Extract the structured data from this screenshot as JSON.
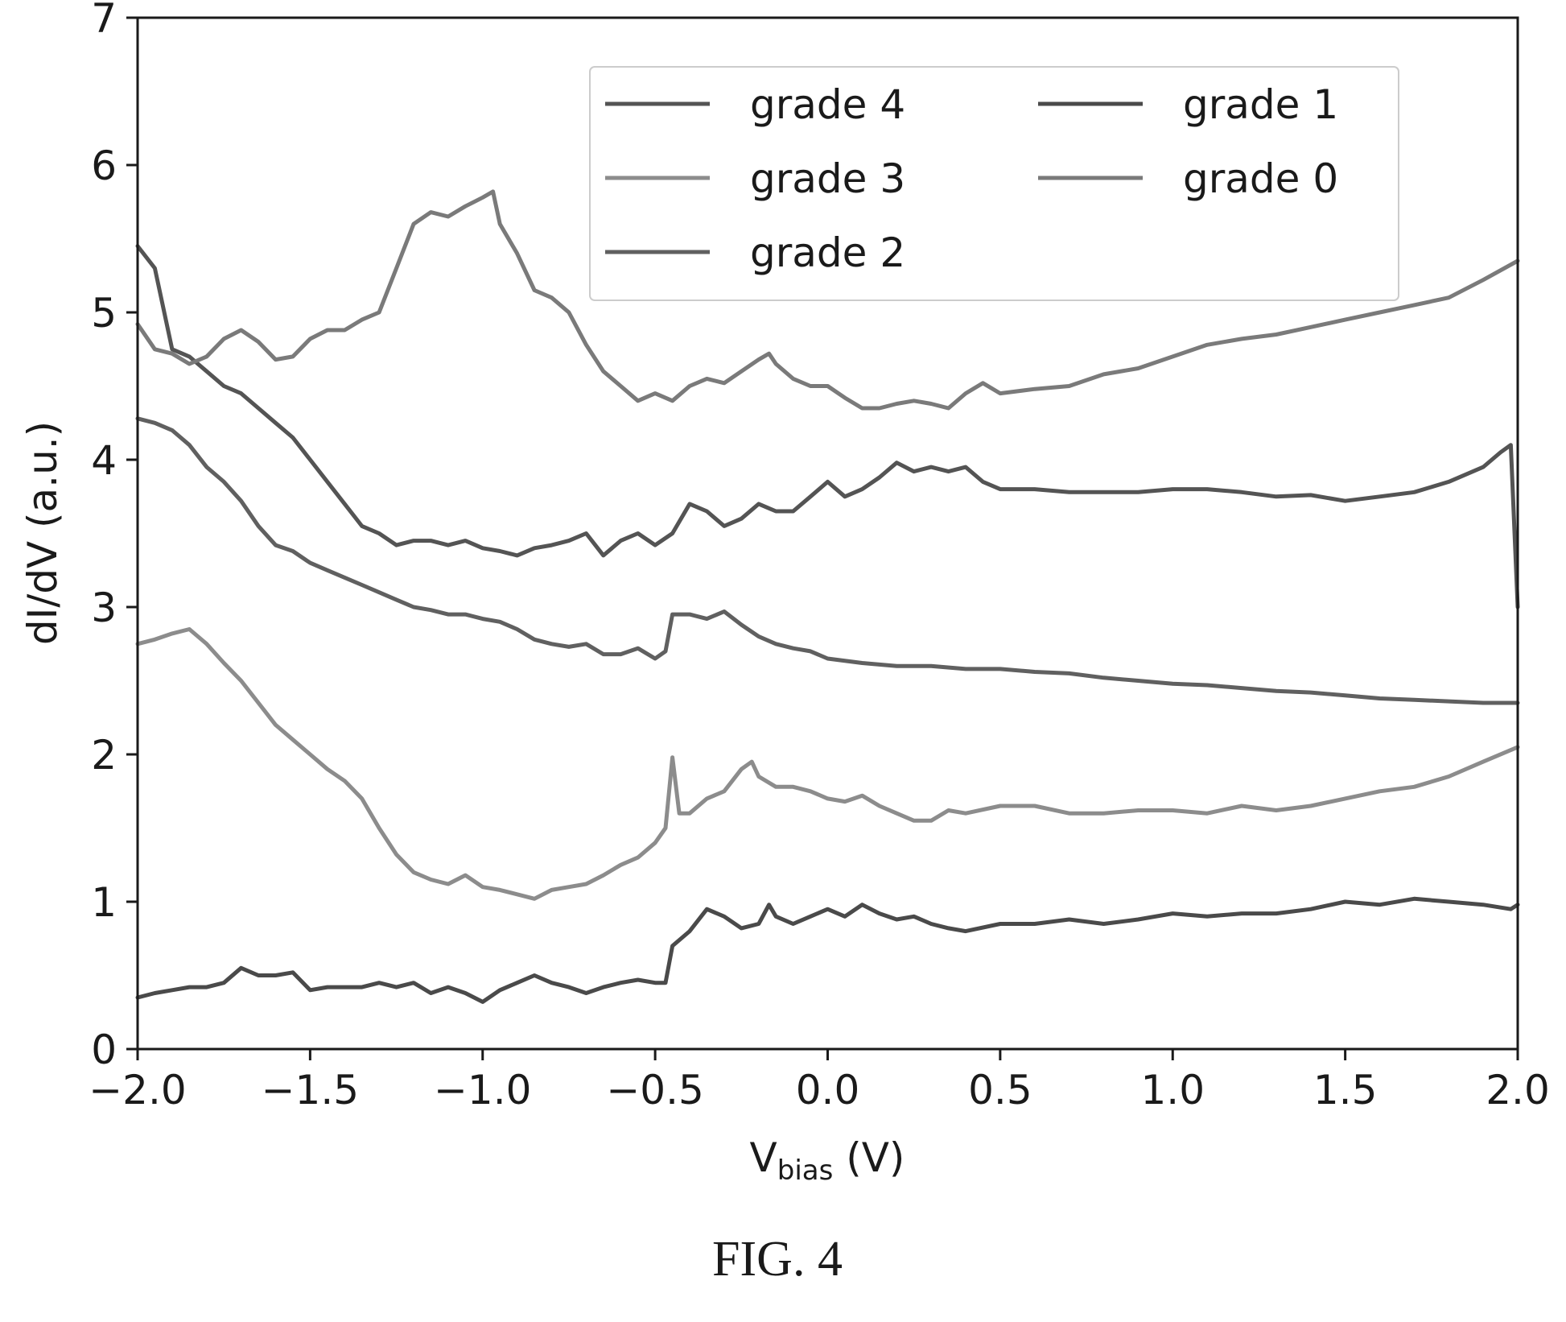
{
  "figure": {
    "caption": "FIG. 4"
  },
  "chart_data": {
    "type": "line",
    "title": "",
    "xlabel_main": "V",
    "xlabel_sub": "bias",
    "xlabel_unit": " (V)",
    "ylabel": "dI/dV (a.u.)",
    "xlim": [
      -2.0,
      2.0
    ],
    "ylim": [
      0,
      7
    ],
    "xticks": [
      -2.0,
      -1.5,
      -1.0,
      -0.5,
      0.0,
      0.5,
      1.0,
      1.5,
      2.0
    ],
    "xtick_labels": [
      "−2.0",
      "−1.5",
      "−1.0",
      "−0.5",
      "0.0",
      "0.5",
      "1.0",
      "1.5",
      "2.0"
    ],
    "yticks": [
      0,
      1,
      2,
      3,
      4,
      5,
      6,
      7
    ],
    "ytick_labels": [
      "0",
      "1",
      "2",
      "3",
      "4",
      "5",
      "6",
      "7"
    ],
    "grid": false,
    "legend": {
      "placement": "top-right",
      "columns": 2
    },
    "series": [
      {
        "name": "grade 4",
        "color": "#545454",
        "x": [
          -2.0,
          -1.95,
          -1.9,
          -1.85,
          -1.8,
          -1.75,
          -1.7,
          -1.65,
          -1.6,
          -1.55,
          -1.5,
          -1.45,
          -1.4,
          -1.35,
          -1.3,
          -1.25,
          -1.2,
          -1.15,
          -1.1,
          -1.05,
          -1.0,
          -0.95,
          -0.9,
          -0.85,
          -0.8,
          -0.75,
          -0.7,
          -0.65,
          -0.6,
          -0.55,
          -0.5,
          -0.45,
          -0.4,
          -0.35,
          -0.3,
          -0.25,
          -0.2,
          -0.15,
          -0.1,
          -0.05,
          0.0,
          0.05,
          0.1,
          0.15,
          0.2,
          0.25,
          0.3,
          0.35,
          0.4,
          0.45,
          0.5,
          0.6,
          0.7,
          0.8,
          0.9,
          1.0,
          1.1,
          1.2,
          1.3,
          1.4,
          1.5,
          1.6,
          1.7,
          1.8,
          1.9,
          1.95,
          1.98,
          2.0
        ],
        "y": [
          5.45,
          5.3,
          4.75,
          4.7,
          4.6,
          4.5,
          4.45,
          4.35,
          4.25,
          4.15,
          4.0,
          3.85,
          3.7,
          3.55,
          3.5,
          3.42,
          3.45,
          3.45,
          3.42,
          3.45,
          3.4,
          3.38,
          3.35,
          3.4,
          3.42,
          3.45,
          3.5,
          3.35,
          3.45,
          3.5,
          3.42,
          3.5,
          3.7,
          3.65,
          3.55,
          3.6,
          3.7,
          3.65,
          3.65,
          3.75,
          3.85,
          3.75,
          3.8,
          3.88,
          3.98,
          3.92,
          3.95,
          3.92,
          3.95,
          3.85,
          3.8,
          3.8,
          3.78,
          3.78,
          3.78,
          3.8,
          3.8,
          3.78,
          3.75,
          3.76,
          3.72,
          3.75,
          3.78,
          3.85,
          3.95,
          4.05,
          4.1,
          3.0
        ]
      },
      {
        "name": "grade 3",
        "color": "#8c8c8c",
        "x": [
          -2.0,
          -1.95,
          -1.9,
          -1.85,
          -1.8,
          -1.75,
          -1.7,
          -1.65,
          -1.6,
          -1.55,
          -1.5,
          -1.45,
          -1.4,
          -1.35,
          -1.3,
          -1.25,
          -1.2,
          -1.15,
          -1.1,
          -1.05,
          -1.0,
          -0.95,
          -0.9,
          -0.85,
          -0.8,
          -0.75,
          -0.7,
          -0.65,
          -0.6,
          -0.55,
          -0.5,
          -0.47,
          -0.45,
          -0.43,
          -0.4,
          -0.35,
          -0.3,
          -0.25,
          -0.22,
          -0.2,
          -0.15,
          -0.1,
          -0.05,
          0.0,
          0.05,
          0.1,
          0.15,
          0.2,
          0.25,
          0.3,
          0.35,
          0.4,
          0.5,
          0.6,
          0.7,
          0.8,
          0.9,
          1.0,
          1.1,
          1.2,
          1.3,
          1.4,
          1.5,
          1.6,
          1.7,
          1.8,
          1.9,
          2.0
        ],
        "y": [
          2.75,
          2.78,
          2.82,
          2.85,
          2.75,
          2.62,
          2.5,
          2.35,
          2.2,
          2.1,
          2.0,
          1.9,
          1.82,
          1.7,
          1.5,
          1.32,
          1.2,
          1.15,
          1.12,
          1.18,
          1.1,
          1.08,
          1.05,
          1.02,
          1.08,
          1.1,
          1.12,
          1.18,
          1.25,
          1.3,
          1.4,
          1.5,
          1.98,
          1.6,
          1.6,
          1.7,
          1.75,
          1.9,
          1.95,
          1.85,
          1.78,
          1.78,
          1.75,
          1.7,
          1.68,
          1.72,
          1.65,
          1.6,
          1.55,
          1.55,
          1.62,
          1.6,
          1.65,
          1.65,
          1.6,
          1.6,
          1.62,
          1.62,
          1.6,
          1.65,
          1.62,
          1.65,
          1.7,
          1.75,
          1.78,
          1.85,
          1.95,
          2.05
        ]
      },
      {
        "name": "grade 2",
        "color": "#606060",
        "x": [
          -2.0,
          -1.95,
          -1.9,
          -1.85,
          -1.8,
          -1.75,
          -1.7,
          -1.65,
          -1.6,
          -1.55,
          -1.5,
          -1.45,
          -1.4,
          -1.35,
          -1.3,
          -1.25,
          -1.2,
          -1.15,
          -1.1,
          -1.05,
          -1.0,
          -0.95,
          -0.9,
          -0.85,
          -0.8,
          -0.75,
          -0.7,
          -0.65,
          -0.6,
          -0.55,
          -0.5,
          -0.47,
          -0.45,
          -0.4,
          -0.35,
          -0.3,
          -0.25,
          -0.2,
          -0.15,
          -0.1,
          -0.05,
          0.0,
          0.1,
          0.2,
          0.3,
          0.4,
          0.5,
          0.6,
          0.7,
          0.8,
          0.9,
          1.0,
          1.1,
          1.2,
          1.3,
          1.4,
          1.5,
          1.6,
          1.7,
          1.8,
          1.9,
          2.0
        ],
        "y": [
          4.28,
          4.25,
          4.2,
          4.1,
          3.95,
          3.85,
          3.72,
          3.55,
          3.42,
          3.38,
          3.3,
          3.25,
          3.2,
          3.15,
          3.1,
          3.05,
          3.0,
          2.98,
          2.95,
          2.95,
          2.92,
          2.9,
          2.85,
          2.78,
          2.75,
          2.73,
          2.75,
          2.68,
          2.68,
          2.72,
          2.65,
          2.7,
          2.95,
          2.95,
          2.92,
          2.97,
          2.88,
          2.8,
          2.75,
          2.72,
          2.7,
          2.65,
          2.62,
          2.6,
          2.6,
          2.58,
          2.58,
          2.56,
          2.55,
          2.52,
          2.5,
          2.48,
          2.47,
          2.45,
          2.43,
          2.42,
          2.4,
          2.38,
          2.37,
          2.36,
          2.35,
          2.35
        ]
      },
      {
        "name": "grade 1",
        "color": "#4a4a4a",
        "x": [
          -2.0,
          -1.95,
          -1.9,
          -1.85,
          -1.8,
          -1.75,
          -1.7,
          -1.65,
          -1.6,
          -1.55,
          -1.5,
          -1.45,
          -1.4,
          -1.35,
          -1.3,
          -1.25,
          -1.2,
          -1.15,
          -1.1,
          -1.05,
          -1.0,
          -0.95,
          -0.9,
          -0.85,
          -0.8,
          -0.75,
          -0.7,
          -0.65,
          -0.6,
          -0.55,
          -0.5,
          -0.47,
          -0.45,
          -0.4,
          -0.35,
          -0.3,
          -0.25,
          -0.2,
          -0.17,
          -0.15,
          -0.1,
          -0.05,
          0.0,
          0.05,
          0.1,
          0.15,
          0.2,
          0.25,
          0.3,
          0.35,
          0.4,
          0.5,
          0.6,
          0.7,
          0.8,
          0.9,
          1.0,
          1.1,
          1.2,
          1.3,
          1.4,
          1.5,
          1.6,
          1.7,
          1.8,
          1.9,
          1.98,
          2.0
        ],
        "y": [
          0.35,
          0.38,
          0.4,
          0.42,
          0.42,
          0.45,
          0.55,
          0.5,
          0.5,
          0.52,
          0.4,
          0.42,
          0.42,
          0.42,
          0.45,
          0.42,
          0.45,
          0.38,
          0.42,
          0.38,
          0.32,
          0.4,
          0.45,
          0.5,
          0.45,
          0.42,
          0.38,
          0.42,
          0.45,
          0.47,
          0.45,
          0.45,
          0.7,
          0.8,
          0.95,
          0.9,
          0.82,
          0.85,
          0.98,
          0.9,
          0.85,
          0.9,
          0.95,
          0.9,
          0.98,
          0.92,
          0.88,
          0.9,
          0.85,
          0.82,
          0.8,
          0.85,
          0.85,
          0.88,
          0.85,
          0.88,
          0.92,
          0.9,
          0.92,
          0.92,
          0.95,
          1.0,
          0.98,
          1.02,
          1.0,
          0.98,
          0.95,
          0.98
        ]
      },
      {
        "name": "grade 0",
        "color": "#7a7a7a",
        "x": [
          -2.0,
          -1.95,
          -1.9,
          -1.85,
          -1.8,
          -1.75,
          -1.7,
          -1.65,
          -1.6,
          -1.55,
          -1.5,
          -1.45,
          -1.4,
          -1.35,
          -1.3,
          -1.25,
          -1.2,
          -1.15,
          -1.1,
          -1.05,
          -1.0,
          -0.97,
          -0.95,
          -0.9,
          -0.85,
          -0.8,
          -0.75,
          -0.7,
          -0.65,
          -0.6,
          -0.55,
          -0.5,
          -0.45,
          -0.4,
          -0.35,
          -0.3,
          -0.25,
          -0.2,
          -0.17,
          -0.15,
          -0.1,
          -0.05,
          0.0,
          0.05,
          0.1,
          0.15,
          0.2,
          0.25,
          0.3,
          0.35,
          0.4,
          0.45,
          0.5,
          0.6,
          0.7,
          0.8,
          0.9,
          1.0,
          1.1,
          1.2,
          1.3,
          1.4,
          1.5,
          1.6,
          1.7,
          1.8,
          1.9,
          2.0
        ],
        "y": [
          4.92,
          4.75,
          4.72,
          4.65,
          4.7,
          4.82,
          4.88,
          4.8,
          4.68,
          4.7,
          4.82,
          4.88,
          4.88,
          4.95,
          5.0,
          5.3,
          5.6,
          5.68,
          5.65,
          5.72,
          5.78,
          5.82,
          5.6,
          5.4,
          5.15,
          5.1,
          5.0,
          4.78,
          4.6,
          4.5,
          4.4,
          4.45,
          4.4,
          4.5,
          4.55,
          4.52,
          4.6,
          4.68,
          4.72,
          4.65,
          4.55,
          4.5,
          4.5,
          4.42,
          4.35,
          4.35,
          4.38,
          4.4,
          4.38,
          4.35,
          4.45,
          4.52,
          4.45,
          4.48,
          4.5,
          4.58,
          4.62,
          4.7,
          4.78,
          4.82,
          4.85,
          4.9,
          4.95,
          5.0,
          5.05,
          5.1,
          5.22,
          5.35
        ]
      }
    ]
  }
}
